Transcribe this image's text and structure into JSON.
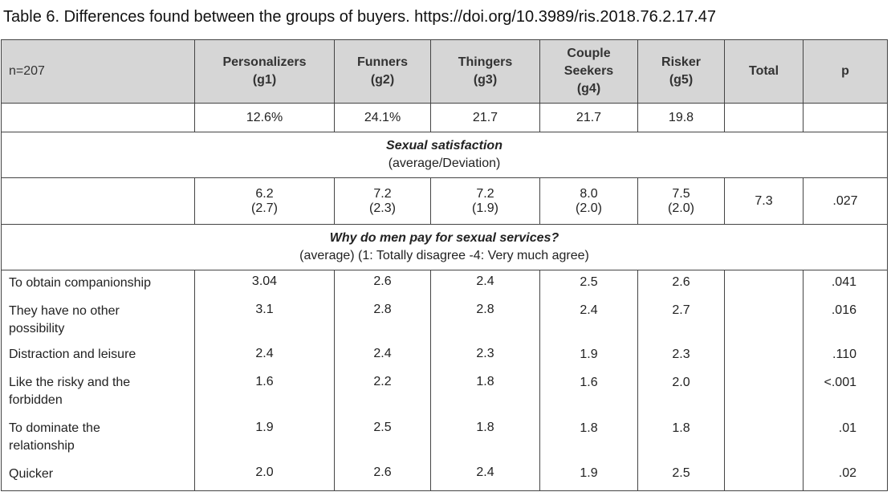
{
  "caption": "Table 6. Differences found between the groups of buyers. https://doi.org/10.3989/ris.2018.76.2.17.47",
  "header": {
    "n": "n=207",
    "groups": [
      {
        "l1": "Personalizers",
        "l2": "(g1)"
      },
      {
        "l1": "Funners",
        "l2": "(g2)"
      },
      {
        "l1": "Thingers",
        "l2": "(g3)"
      },
      {
        "l1": "Couple",
        "l2": "Seekers",
        "l3": "(g4)"
      },
      {
        "l1": "Risker",
        "l2": "(g5)"
      }
    ],
    "total": "Total",
    "p": "p"
  },
  "shares": [
    "12.6%",
    "24.1%",
    "21.7",
    "21.7",
    "19.8"
  ],
  "satisfaction": {
    "title": "Sexual satisfaction",
    "subtitle": "(average/Deviation)",
    "means": [
      "6.2",
      "7.2",
      "7.2",
      "8.0",
      "7.5"
    ],
    "sds": [
      "(2.7)",
      "(2.3)",
      "(1.9)",
      "(2.0)",
      "(2.0)"
    ],
    "total": "7.3",
    "p": ".027"
  },
  "reasons": {
    "title": "Why do men pay for sexual services?",
    "subtitle": "(average) (1: Totally disagree -4: Very much agree)",
    "rows": [
      {
        "l1": "To obtain companionship",
        "l2": "",
        "v": [
          "3.04",
          "2.6",
          "2.4",
          "2.5",
          "2.6"
        ],
        "p": ".041"
      },
      {
        "l1": "They have no other",
        "l2": "possibility",
        "v": [
          "3.1",
          "2.8",
          "2.8",
          "2.4",
          "2.7"
        ],
        "p": ".016"
      },
      {
        "l1": "Distraction and leisure",
        "l2": "",
        "v": [
          "2.4",
          "2.4",
          "2.3",
          "1.9",
          "2.3"
        ],
        "p": ".110"
      },
      {
        "l1": "Like the risky and the",
        "l2": "forbidden",
        "v": [
          "1.6",
          "2.2",
          "1.8",
          "1.6",
          "2.0"
        ],
        "p": "<.001"
      },
      {
        "l1": "To dominate the",
        "l2": "relationship",
        "v": [
          "1.9",
          "2.5",
          "1.8",
          "1.8",
          "1.8"
        ],
        "p": ".01"
      },
      {
        "l1": "Quicker",
        "l2": "",
        "v": [
          "2.0",
          "2.6",
          "2.4",
          "1.9",
          "2.5"
        ],
        "p": ".02"
      }
    ]
  }
}
